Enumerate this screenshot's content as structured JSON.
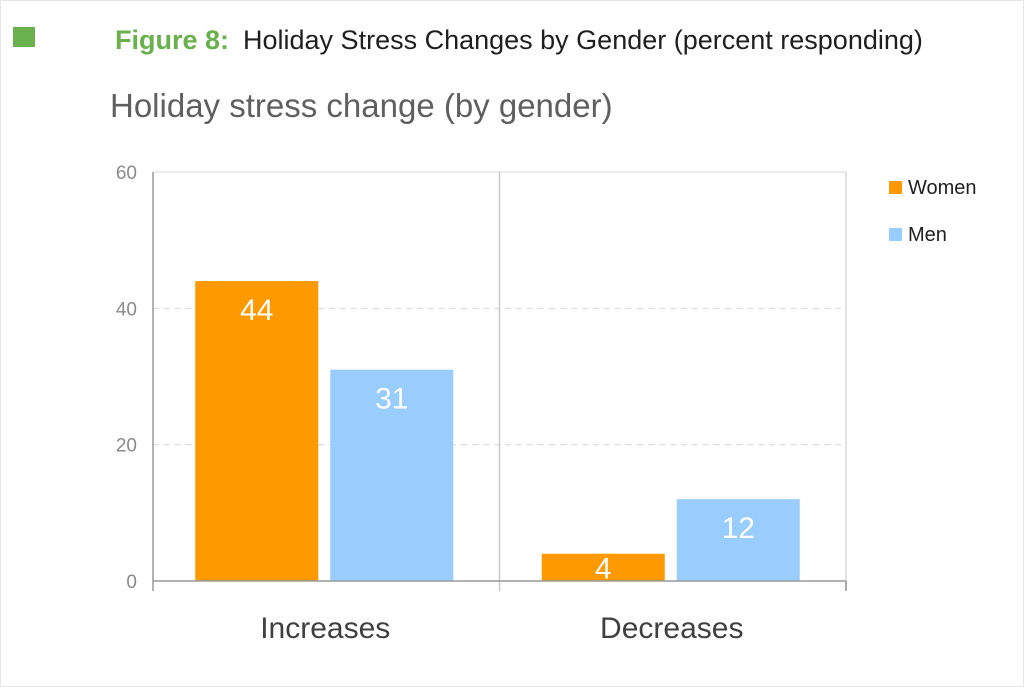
{
  "figure": {
    "label": "Figure 8:",
    "caption": "Holiday Stress Changes by Gender (percent responding)",
    "accent_color": "#6ab04c"
  },
  "chart_data": {
    "type": "bar",
    "title": "Holiday stress change (by gender)",
    "xlabel": "",
    "ylabel": "",
    "categories": [
      "Increases",
      "Decreases"
    ],
    "series": [
      {
        "name": "Women",
        "values": [
          44,
          4
        ],
        "color": "#ff9900"
      },
      {
        "name": "Men",
        "values": [
          31,
          12
        ],
        "color": "#99ccff"
      }
    ],
    "ylim": [
      0,
      60
    ],
    "yticks": [
      0,
      20,
      40,
      60
    ],
    "grid": true,
    "data_labels": true,
    "legend_position": "right"
  }
}
